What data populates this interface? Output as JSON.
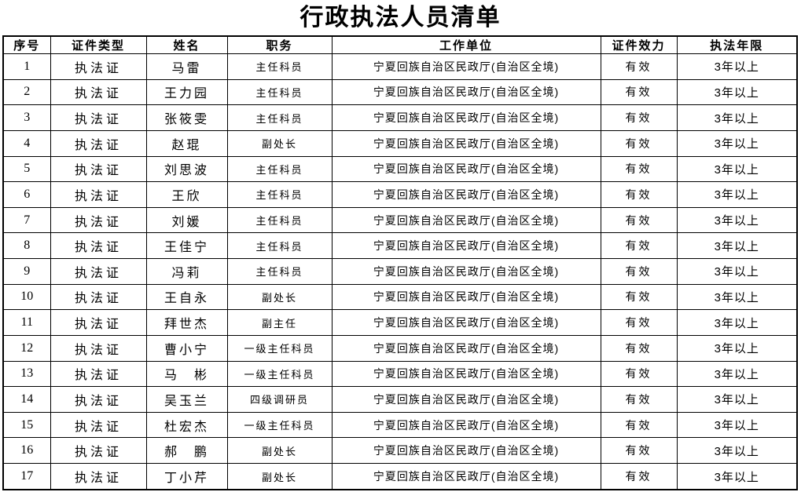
{
  "page_title": "行政执法人员清单",
  "colors": {
    "background": "#ffffff",
    "border": "#000000",
    "text": "#000000"
  },
  "table": {
    "headers": [
      "序号",
      "证件类型",
      "姓名",
      "职务",
      "工作单位",
      "证件效力",
      "执法年限"
    ],
    "rows": [
      {
        "no": "1",
        "cert_type": "执法证",
        "name": "马雷",
        "position": "主任科员",
        "work_unit": "宁夏回族自治区民政厅(自治区全境)",
        "validity": "有效",
        "years": "3年以上"
      },
      {
        "no": "2",
        "cert_type": "执法证",
        "name": "王力园",
        "position": "主任科员",
        "work_unit": "宁夏回族自治区民政厅(自治区全境)",
        "validity": "有效",
        "years": "3年以上"
      },
      {
        "no": "3",
        "cert_type": "执法证",
        "name": "张筱雯",
        "position": "主任科员",
        "work_unit": "宁夏回族自治区民政厅(自治区全境)",
        "validity": "有效",
        "years": "3年以上"
      },
      {
        "no": "4",
        "cert_type": "执法证",
        "name": "赵琨",
        "position": "副处长",
        "work_unit": "宁夏回族自治区民政厅(自治区全境)",
        "validity": "有效",
        "years": "3年以上"
      },
      {
        "no": "5",
        "cert_type": "执法证",
        "name": "刘思波",
        "position": "主任科员",
        "work_unit": "宁夏回族自治区民政厅(自治区全境)",
        "validity": "有效",
        "years": "3年以上"
      },
      {
        "no": "6",
        "cert_type": "执法证",
        "name": "王欣",
        "position": "主任科员",
        "work_unit": "宁夏回族自治区民政厅(自治区全境)",
        "validity": "有效",
        "years": "3年以上"
      },
      {
        "no": "7",
        "cert_type": "执法证",
        "name": "刘媛",
        "position": "主任科员",
        "work_unit": "宁夏回族自治区民政厅(自治区全境)",
        "validity": "有效",
        "years": "3年以上"
      },
      {
        "no": "8",
        "cert_type": "执法证",
        "name": "王佳宁",
        "position": "主任科员",
        "work_unit": "宁夏回族自治区民政厅(自治区全境)",
        "validity": "有效",
        "years": "3年以上"
      },
      {
        "no": "9",
        "cert_type": "执法证",
        "name": "冯莉",
        "position": "主任科员",
        "work_unit": "宁夏回族自治区民政厅(自治区全境)",
        "validity": "有效",
        "years": "3年以上"
      },
      {
        "no": "10",
        "cert_type": "执法证",
        "name": "王自永",
        "position": "副处长",
        "work_unit": "宁夏回族自治区民政厅(自治区全境)",
        "validity": "有效",
        "years": "3年以上"
      },
      {
        "no": "11",
        "cert_type": "执法证",
        "name": "拜世杰",
        "position": "副主任",
        "work_unit": "宁夏回族自治区民政厅(自治区全境)",
        "validity": "有效",
        "years": "3年以上"
      },
      {
        "no": "12",
        "cert_type": "执法证",
        "name": "曹小宁",
        "position": "一级主任科员",
        "work_unit": "宁夏回族自治区民政厅(自治区全境)",
        "validity": "有效",
        "years": "3年以上"
      },
      {
        "no": "13",
        "cert_type": "执法证",
        "name": "马　彬",
        "position": "一级主任科员",
        "work_unit": "宁夏回族自治区民政厅(自治区全境)",
        "validity": "有效",
        "years": "3年以上"
      },
      {
        "no": "14",
        "cert_type": "执法证",
        "name": "吴玉兰",
        "position": "四级调研员",
        "work_unit": "宁夏回族自治区民政厅(自治区全境)",
        "validity": "有效",
        "years": "3年以上"
      },
      {
        "no": "15",
        "cert_type": "执法证",
        "name": "杜宏杰",
        "position": "一级主任科员",
        "work_unit": "宁夏回族自治区民政厅(自治区全境)",
        "validity": "有效",
        "years": "3年以上"
      },
      {
        "no": "16",
        "cert_type": "执法证",
        "name": "郝　鹏",
        "position": "副处长",
        "work_unit": "宁夏回族自治区民政厅(自治区全境)",
        "validity": "有效",
        "years": "3年以上"
      },
      {
        "no": "17",
        "cert_type": "执法证",
        "name": "丁小芹",
        "position": "副处长",
        "work_unit": "宁夏回族自治区民政厅(自治区全境)",
        "validity": "有效",
        "years": "3年以上"
      }
    ]
  }
}
